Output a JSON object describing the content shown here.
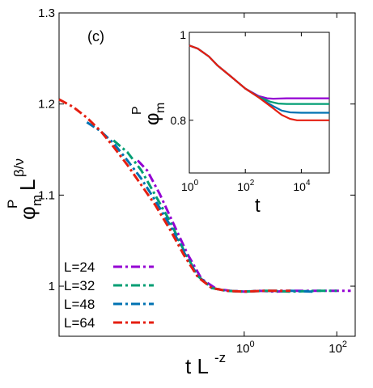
{
  "panel_label": "(c)",
  "legend": [
    {
      "label": "L=24",
      "color": "#9400d3"
    },
    {
      "label": "L=32",
      "color": "#009e73"
    },
    {
      "label": "L=48",
      "color": "#0072b2"
    },
    {
      "label": "L=64",
      "color": "#e51e10"
    }
  ],
  "chart_data": [
    {
      "type": "line",
      "scale": {
        "x": "log",
        "y": "linear"
      },
      "xlabel": {
        "base": "t L",
        "sup": "-z"
      },
      "ylabel": {
        "main": "φ",
        "sub": "m",
        "sup": "P",
        "after": "L",
        "after_sup": "β/ν"
      },
      "xlim": [
        0.0001,
        250
      ],
      "ylim": [
        0.945,
        1.3
      ],
      "xticks": [
        {
          "value": 1,
          "base": "10",
          "exp": "0"
        },
        {
          "value": 100,
          "base": "10",
          "exp": "2"
        }
      ],
      "yticks": [
        "1",
        "1.1",
        "1.2",
        "1.3"
      ],
      "series": [
        {
          "name": "L=24",
          "color": "#9400d3",
          "x": [
            0.005,
            0.008,
            0.015,
            0.03,
            0.06,
            0.12,
            0.25,
            0.5,
            1,
            2,
            5,
            10,
            30,
            100,
            200
          ],
          "y": [
            1.138,
            1.127,
            1.101,
            1.068,
            1.035,
            1.008,
            0.997,
            0.995,
            0.994,
            0.995,
            0.994,
            0.995,
            0.995,
            0.995,
            0.995
          ]
        },
        {
          "name": "L=32",
          "color": "#009e73",
          "x": [
            0.0015,
            0.003,
            0.006,
            0.012,
            0.025,
            0.05,
            0.1,
            0.2,
            0.4,
            1,
            3,
            10,
            40,
            100
          ],
          "y": [
            1.16,
            1.147,
            1.127,
            1.1,
            1.071,
            1.039,
            1.011,
            0.998,
            0.995,
            0.994,
            0.995,
            0.994,
            0.995,
            0.995
          ]
        },
        {
          "name": "L=48",
          "color": "#0072b2",
          "x": [
            0.0004,
            0.0008,
            0.0015,
            0.003,
            0.006,
            0.012,
            0.025,
            0.05,
            0.1,
            0.2,
            0.4,
            1,
            3,
            10,
            30
          ],
          "y": [
            1.18,
            1.17,
            1.157,
            1.138,
            1.118,
            1.094,
            1.067,
            1.037,
            1.011,
            0.998,
            0.995,
            0.994,
            0.995,
            0.995,
            0.994
          ]
        },
        {
          "name": "L=64",
          "color": "#e51e10",
          "x": [
            0.0001,
            0.0002,
            0.0004,
            0.0008,
            0.0015,
            0.003,
            0.006,
            0.012,
            0.025,
            0.05,
            0.1,
            0.2,
            0.4,
            1,
            3,
            10
          ],
          "y": [
            1.205,
            1.197,
            1.185,
            1.17,
            1.153,
            1.133,
            1.111,
            1.089,
            1.062,
            1.034,
            1.01,
            0.998,
            0.995,
            0.994,
            0.995,
            0.995
          ]
        }
      ]
    },
    {
      "type": "line",
      "scale": {
        "x": "log",
        "y": "linear"
      },
      "xlabel": "t",
      "ylabel": {
        "main": "φ",
        "sub": "m",
        "sup": "P"
      },
      "xlim": [
        1,
        100000
      ],
      "ylim": [
        0.68,
        1.0
      ],
      "xticks": [
        {
          "value": 1,
          "base": "10",
          "exp": "0"
        },
        {
          "value": 100,
          "base": "10",
          "exp": "2"
        },
        {
          "value": 10000,
          "base": "10",
          "exp": "4"
        }
      ],
      "yticks": [
        "0.8",
        "1"
      ],
      "series": [
        {
          "name": "L=24",
          "color": "#9400d3",
          "x": [
            1,
            2,
            5,
            10,
            30,
            100,
            300,
            600,
            1000,
            3000,
            10000,
            100000
          ],
          "y": [
            0.97,
            0.963,
            0.945,
            0.925,
            0.9,
            0.872,
            0.855,
            0.85,
            0.849,
            0.85,
            0.85,
            0.85
          ]
        },
        {
          "name": "L=32",
          "color": "#009e73",
          "x": [
            1,
            2,
            5,
            10,
            30,
            100,
            300,
            800,
            1500,
            3000,
            10000,
            100000
          ],
          "y": [
            0.97,
            0.963,
            0.945,
            0.925,
            0.9,
            0.872,
            0.853,
            0.842,
            0.838,
            0.837,
            0.837,
            0.837
          ]
        },
        {
          "name": "L=48",
          "color": "#0072b2",
          "x": [
            1,
            2,
            5,
            10,
            30,
            100,
            300,
            1000,
            2000,
            4000,
            10000,
            100000
          ],
          "y": [
            0.97,
            0.963,
            0.945,
            0.925,
            0.9,
            0.872,
            0.852,
            0.832,
            0.822,
            0.818,
            0.817,
            0.817
          ]
        },
        {
          "name": "L=64",
          "color": "#e51e10",
          "x": [
            1,
            2,
            5,
            10,
            30,
            100,
            300,
            1000,
            2000,
            4000,
            7000,
            10000,
            100000
          ],
          "y": [
            0.97,
            0.963,
            0.945,
            0.925,
            0.9,
            0.872,
            0.852,
            0.827,
            0.812,
            0.803,
            0.8,
            0.8,
            0.8
          ]
        }
      ]
    }
  ]
}
